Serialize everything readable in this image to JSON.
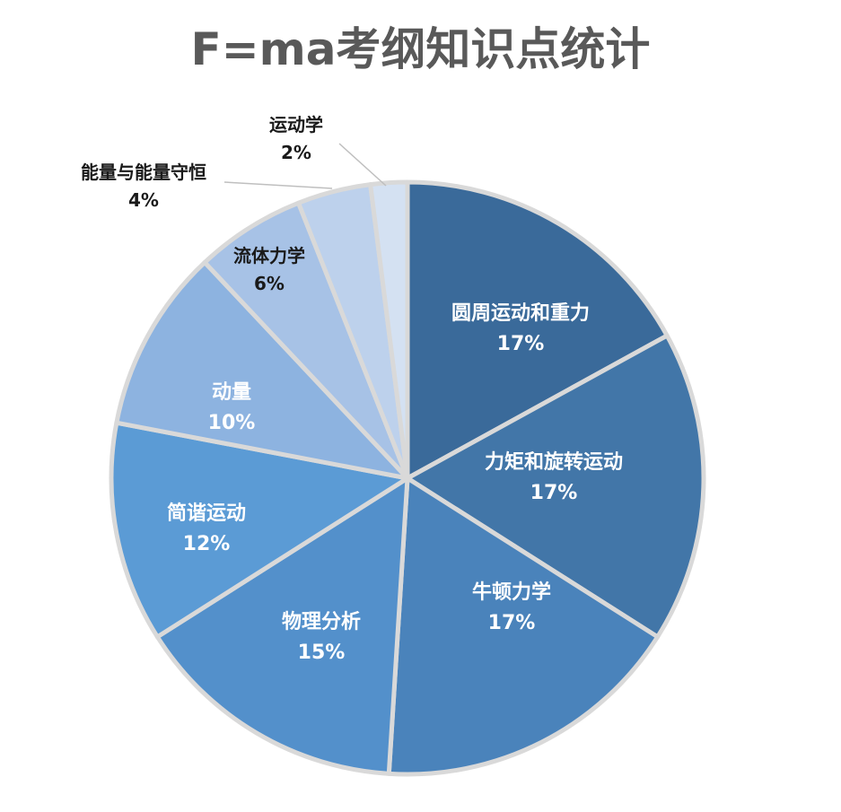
{
  "chart_data": {
    "type": "pie",
    "title": "F=ma考纲知识点统计",
    "slices": [
      {
        "label": "圆周运动和重力",
        "value": 17,
        "percent_label": "17%",
        "color": "#3a6a9a"
      },
      {
        "label": "力矩和旋转运动",
        "value": 17,
        "percent_label": "17%",
        "color": "#4276a8"
      },
      {
        "label": "牛顿力学",
        "value": 17,
        "percent_label": "17%",
        "color": "#4a83bb"
      },
      {
        "label": "物理分析",
        "value": 15,
        "percent_label": "15%",
        "color": "#5390cb"
      },
      {
        "label": "简谐运动",
        "value": 12,
        "percent_label": "12%",
        "color": "#5b9bd5"
      },
      {
        "label": "动量",
        "value": 10,
        "percent_label": "10%",
        "color": "#8db3e0"
      },
      {
        "label": "流体力学",
        "value": 6,
        "percent_label": "6%",
        "color": "#a7c2e6"
      },
      {
        "label": "能量与能量守恒",
        "value": 4,
        "percent_label": "4%",
        "color": "#bdd1ec"
      },
      {
        "label": "运动学",
        "value": 2,
        "percent_label": "2%",
        "color": "#d4e1f2"
      }
    ]
  }
}
